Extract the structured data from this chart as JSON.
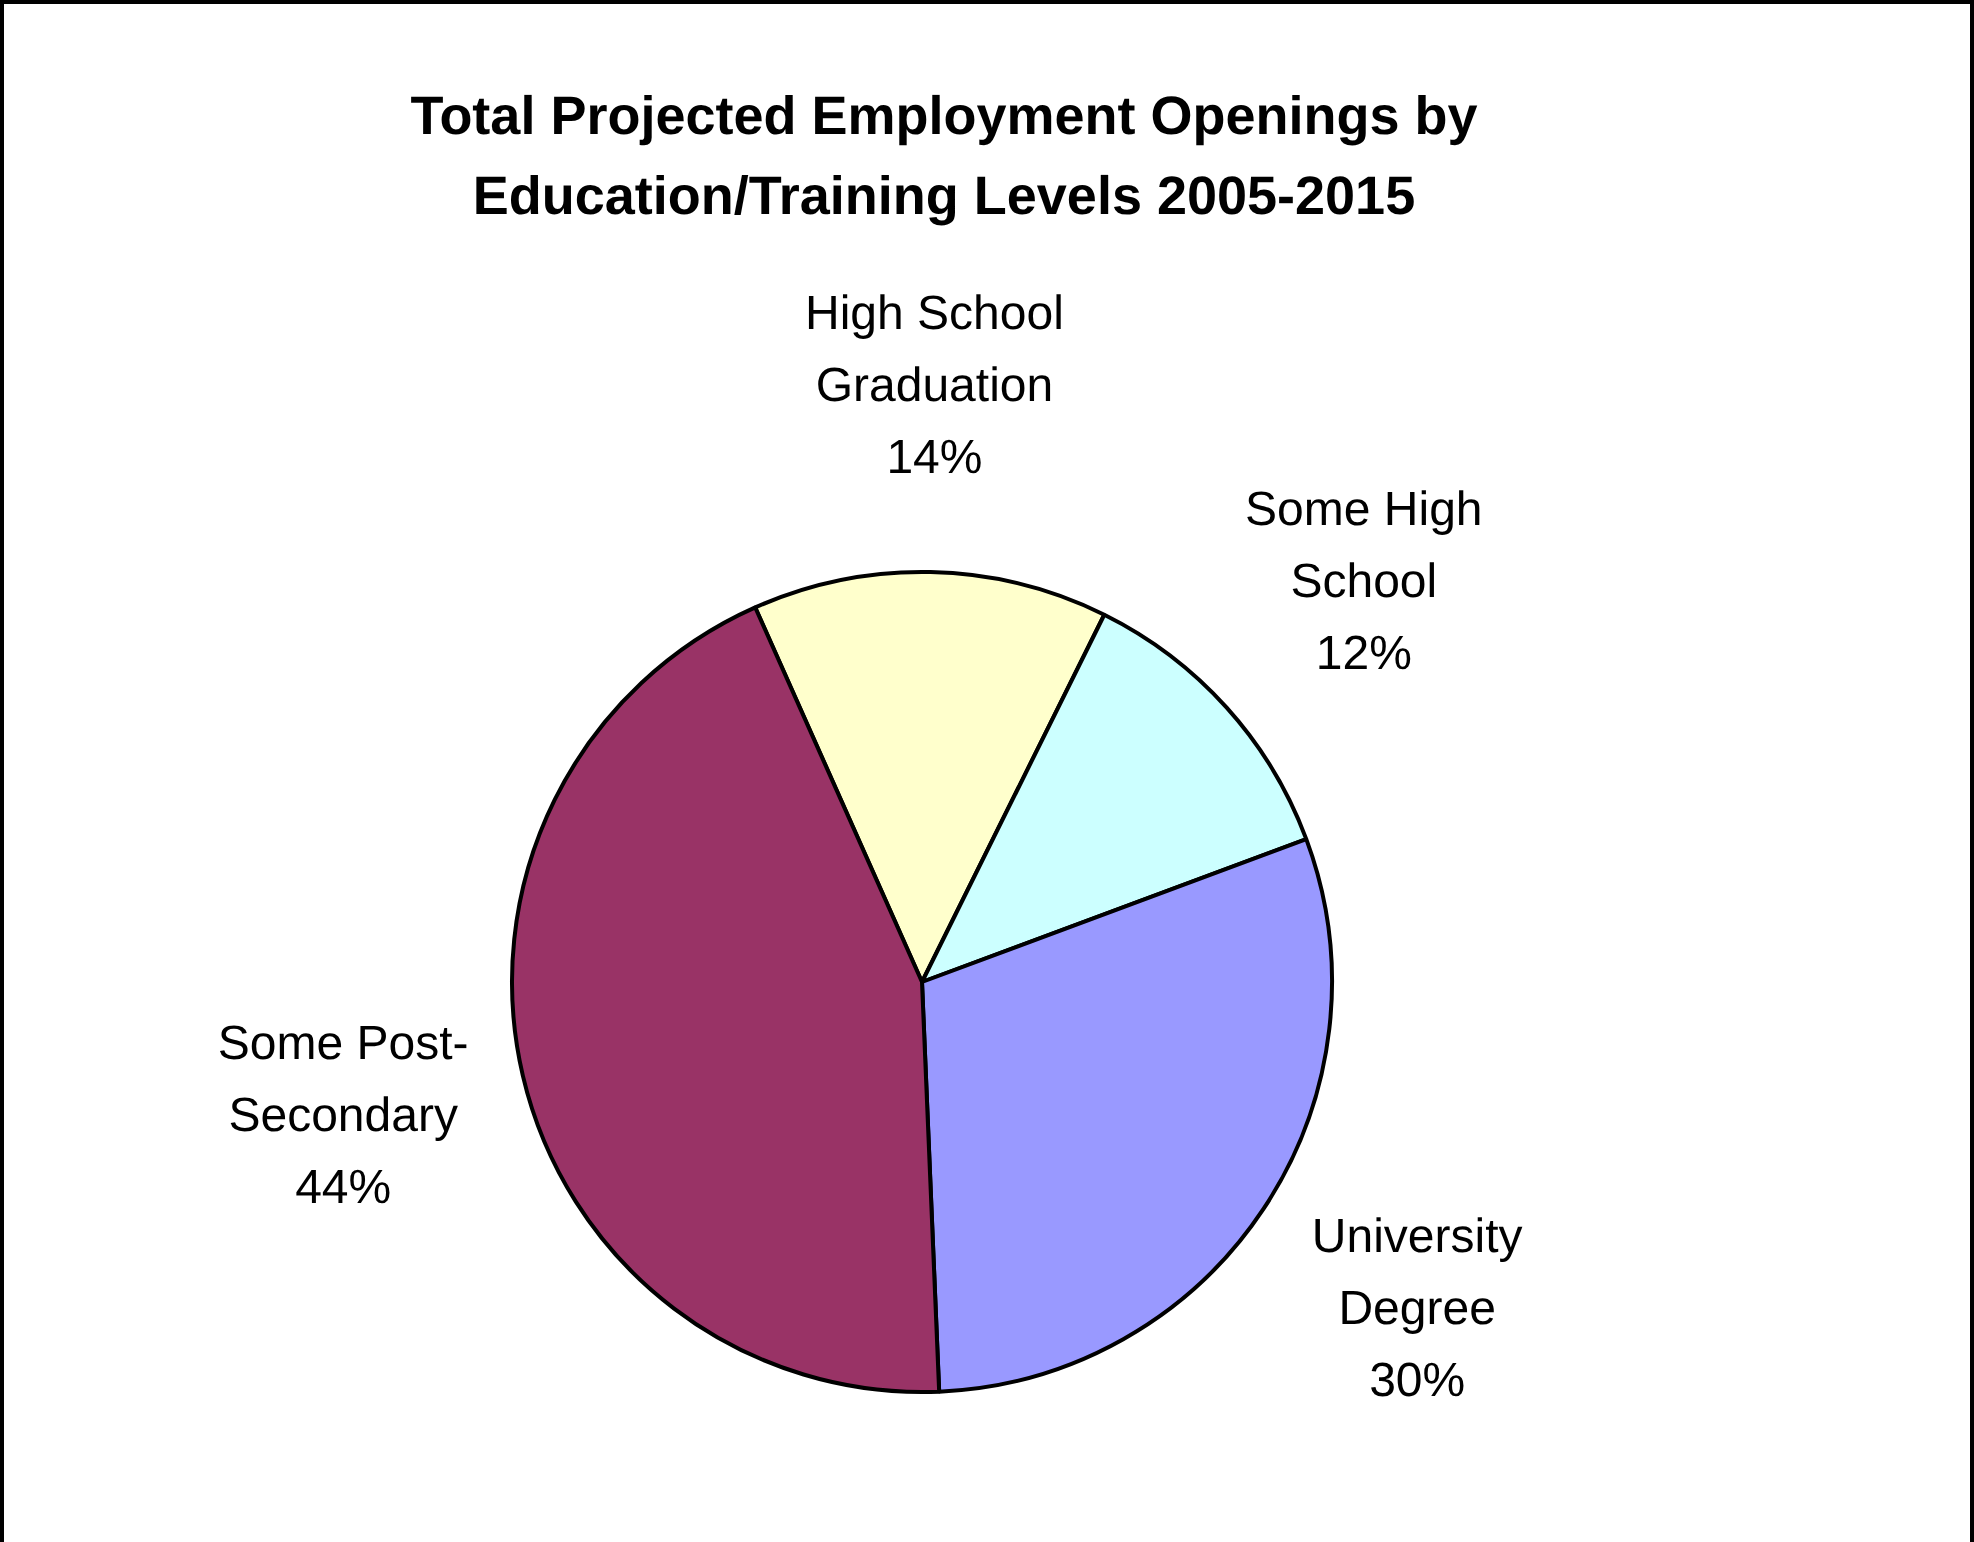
{
  "chart_data": {
    "type": "pie",
    "title": "Total Projected Employment Openings by Education/Training Levels 2005-2015",
    "categories": [
      "High School Graduation",
      "Some High School",
      "University Degree",
      "Some Post-Secondary"
    ],
    "values": [
      14,
      12,
      30,
      44
    ],
    "value_labels": [
      "14%",
      "12%",
      "30%",
      "44%"
    ],
    "colors": [
      "#ffffcc",
      "#ccffff",
      "#9999ff",
      "#993366"
    ],
    "legend": false
  }
}
